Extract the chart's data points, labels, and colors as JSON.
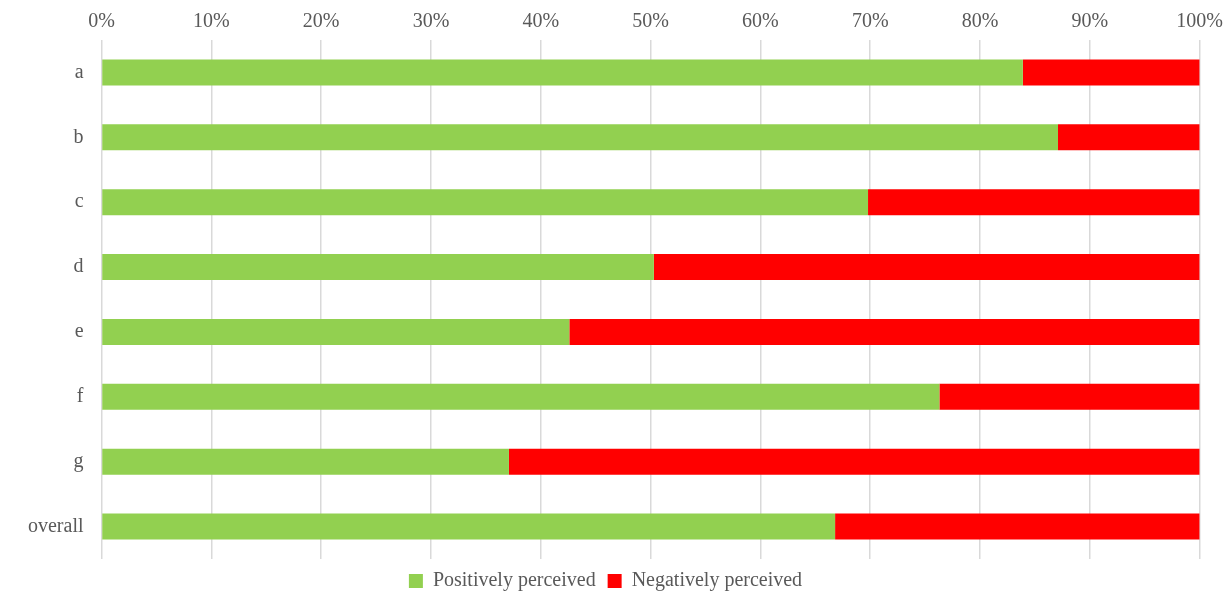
{
  "chart_data": {
    "type": "bar",
    "orientation": "horizontal",
    "stacked": true,
    "categories": [
      "a",
      "b",
      "c",
      "d",
      "e",
      "f",
      "g",
      "overall"
    ],
    "series": [
      {
        "name": "Positively perceived",
        "color": "#92d050",
        "values": [
          83.9,
          87.1,
          69.8,
          50.3,
          42.6,
          76.3,
          37.1,
          66.8
        ]
      },
      {
        "name": "Negatively perceived",
        "color": "#ff0000",
        "values": [
          16.1,
          12.9,
          30.2,
          49.7,
          57.4,
          23.7,
          62.9,
          33.2
        ]
      }
    ],
    "xlim": [
      0,
      100
    ],
    "xticks": [
      {
        "value": 0,
        "label": "0%"
      },
      {
        "value": 10,
        "label": "10%"
      },
      {
        "value": 20,
        "label": "20%"
      },
      {
        "value": 30,
        "label": "30%"
      },
      {
        "value": 40,
        "label": "40%"
      },
      {
        "value": 50,
        "label": "50%"
      },
      {
        "value": 60,
        "label": "60%"
      },
      {
        "value": 70,
        "label": "70%"
      },
      {
        "value": 80,
        "label": "80%"
      },
      {
        "value": 90,
        "label": "90%"
      },
      {
        "value": 100,
        "label": "100%"
      }
    ],
    "grid": "x",
    "legend": "bottom"
  }
}
